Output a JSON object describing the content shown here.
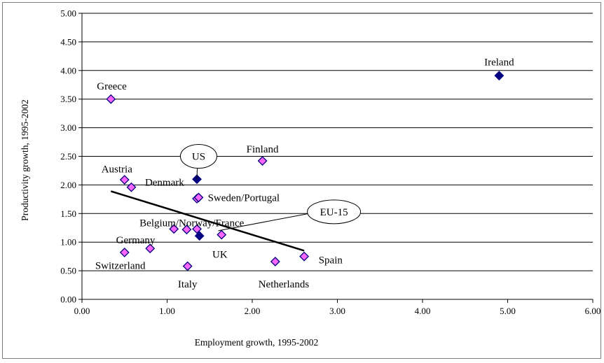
{
  "chart_data": {
    "type": "scatter",
    "title": "",
    "xlabel": "Employment growth, 1995-2002",
    "ylabel": "Productivity growth, 1995-2002",
    "xlim": [
      0,
      6
    ],
    "ylim": [
      0,
      5
    ],
    "x_ticks": [
      "0.00",
      "1.00",
      "2.00",
      "3.00",
      "4.00",
      "5.00",
      "6.00"
    ],
    "y_ticks": [
      "0.00",
      "0.50",
      "1.00",
      "1.50",
      "2.00",
      "2.50",
      "3.00",
      "3.50",
      "4.00",
      "4.50",
      "5.00"
    ],
    "grid": "horizontal",
    "legend": "none",
    "colors": {
      "eu_marker_fill": "#ff66ff",
      "eu_marker_stroke": "#000080",
      "other_marker_fill": "#000080",
      "trendline": "#000000"
    },
    "series": [
      {
        "group": "eu",
        "marker": "diamond",
        "points": [
          {
            "x": 0.34,
            "y": 3.5
          },
          {
            "x": 0.5,
            "y": 2.09
          },
          {
            "x": 0.58,
            "y": 1.96
          },
          {
            "x": 1.35,
            "y": 1.76
          },
          {
            "x": 1.37,
            "y": 1.78
          },
          {
            "x": 2.12,
            "y": 2.42
          },
          {
            "x": 1.08,
            "y": 1.23
          },
          {
            "x": 1.23,
            "y": 1.22
          },
          {
            "x": 1.35,
            "y": 1.23
          },
          {
            "x": 1.64,
            "y": 1.13
          },
          {
            "x": 0.8,
            "y": 0.89
          },
          {
            "x": 0.5,
            "y": 0.82
          },
          {
            "x": 1.24,
            "y": 0.58
          },
          {
            "x": 2.27,
            "y": 0.66
          },
          {
            "x": 2.61,
            "y": 0.75
          }
        ]
      },
      {
        "group": "other",
        "marker": "diamond",
        "points": [
          {
            "x": 4.9,
            "y": 3.91
          },
          {
            "x": 1.35,
            "y": 2.1
          },
          {
            "x": 1.38,
            "y": 1.11
          }
        ]
      }
    ],
    "trendline": {
      "x1": 0.34,
      "y1": 1.89,
      "x2": 2.61,
      "y2": 0.85
    },
    "labels": [
      {
        "text": "Ireland",
        "x": 4.9,
        "y": 4.15
      },
      {
        "text": "Greece",
        "x": 0.35,
        "y": 3.73
      },
      {
        "text": "Finland",
        "x": 2.12,
        "y": 2.63
      },
      {
        "text": "Austria",
        "x": 0.41,
        "y": 2.28
      },
      {
        "text": "Denmark",
        "x": 0.97,
        "y": 2.05
      },
      {
        "text": "Sweden/Portugal",
        "x": 1.9,
        "y": 1.78
      },
      {
        "text": "Belgium/Norway/France",
        "x": 1.29,
        "y": 1.34
      },
      {
        "text": "Germany",
        "x": 0.63,
        "y": 1.04
      },
      {
        "text": "UK",
        "x": 1.62,
        "y": 0.79
      },
      {
        "text": "Switzerland",
        "x": 0.45,
        "y": 0.59
      },
      {
        "text": "Spain",
        "x": 2.92,
        "y": 0.69
      },
      {
        "text": "Italy",
        "x": 1.24,
        "y": 0.27
      },
      {
        "text": "Netherlands",
        "x": 2.37,
        "y": 0.27
      }
    ],
    "callouts": [
      {
        "text": "US",
        "x": 1.37,
        "y": 2.5,
        "target_x": 1.35,
        "target_y": 2.1
      },
      {
        "text": "EU-15",
        "x": 2.96,
        "y": 1.53,
        "target_x": 1.6,
        "target_y": 1.2
      }
    ]
  }
}
